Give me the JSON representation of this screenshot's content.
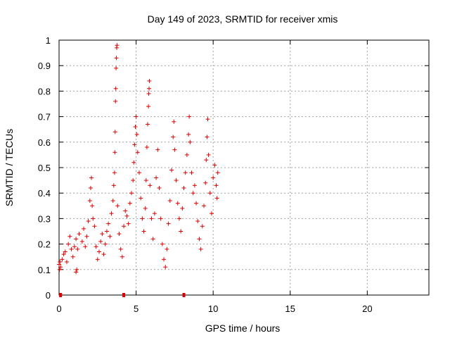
{
  "chart_data": {
    "type": "scatter",
    "title": "Day 149 of 2023, SRMTID for receiver xmis",
    "xlabel": "GPS time / hours",
    "ylabel": "SRMTID / TECUs",
    "xlim": [
      0,
      24
    ],
    "ylim": [
      0,
      1
    ],
    "xticks": [
      0,
      5,
      10,
      15,
      20
    ],
    "xtick_labels": [
      "0",
      "5",
      "10",
      "15",
      "20"
    ],
    "yticks": [
      0,
      0.1,
      0.2,
      0.3,
      0.4,
      0.5,
      0.6,
      0.7,
      0.8,
      0.9,
      1
    ],
    "ytick_labels": [
      "0",
      "0.1",
      "0.2",
      "0.3",
      "0.4",
      "0.5",
      "0.6",
      "0.7",
      "0.8",
      "0.9",
      "1"
    ],
    "grid": true,
    "marker": "+",
    "color": "#dd0000",
    "series": [
      {
        "name": "SRMTID",
        "points": [
          [
            0.0,
            0.12
          ],
          [
            0.03,
            0.1
          ],
          [
            0.06,
            0.13
          ],
          [
            0.1,
            0.11
          ],
          [
            0.2,
            0.14
          ],
          [
            0.3,
            0.16
          ],
          [
            0.4,
            0.17
          ],
          [
            0.5,
            0.13
          ],
          [
            0.6,
            0.2
          ],
          [
            0.7,
            0.23
          ],
          [
            0.8,
            0.18
          ],
          [
            0.9,
            0.15
          ],
          [
            1.0,
            0.19
          ],
          [
            1.1,
            0.22
          ],
          [
            1.2,
            0.18
          ],
          [
            1.3,
            0.24
          ],
          [
            1.1,
            0.09
          ],
          [
            1.15,
            0.1
          ],
          [
            1.5,
            0.21
          ],
          [
            1.6,
            0.26
          ],
          [
            1.7,
            0.19
          ],
          [
            1.8,
            0.23
          ],
          [
            1.9,
            0.29
          ],
          [
            2.0,
            0.37
          ],
          [
            2.05,
            0.42
          ],
          [
            2.1,
            0.46
          ],
          [
            2.15,
            0.35
          ],
          [
            2.2,
            0.3
          ],
          [
            2.3,
            0.27
          ],
          [
            2.4,
            0.19
          ],
          [
            2.5,
            0.14
          ],
          [
            2.6,
            0.17
          ],
          [
            2.7,
            0.21
          ],
          [
            2.8,
            0.24
          ],
          [
            2.9,
            0.16
          ],
          [
            3.0,
            0.2
          ],
          [
            3.1,
            0.25
          ],
          [
            3.2,
            0.28
          ],
          [
            3.3,
            0.23
          ],
          [
            3.4,
            0.32
          ],
          [
            3.5,
            0.37
          ],
          [
            3.55,
            0.43
          ],
          [
            3.6,
            0.48
          ],
          [
            3.62,
            0.56
          ],
          [
            3.64,
            0.64
          ],
          [
            3.66,
            0.76
          ],
          [
            3.68,
            0.81
          ],
          [
            3.7,
            0.89
          ],
          [
            3.72,
            0.93
          ],
          [
            3.74,
            0.97
          ],
          [
            3.76,
            0.98
          ],
          [
            3.8,
            0.35
          ],
          [
            3.9,
            0.24
          ],
          [
            4.0,
            0.18
          ],
          [
            4.1,
            0.15
          ],
          [
            4.2,
            0.27
          ],
          [
            4.3,
            0.33
          ],
          [
            4.4,
            0.31
          ],
          [
            4.5,
            0.28
          ],
          [
            4.6,
            0.36
          ],
          [
            4.7,
            0.4
          ],
          [
            4.8,
            0.45
          ],
          [
            4.85,
            0.52
          ],
          [
            4.9,
            0.59
          ],
          [
            4.95,
            0.66
          ],
          [
            5.0,
            0.7
          ],
          [
            5.05,
            0.63
          ],
          [
            5.1,
            0.56
          ],
          [
            5.2,
            0.48
          ],
          [
            5.3,
            0.38
          ],
          [
            5.4,
            0.3
          ],
          [
            5.5,
            0.25
          ],
          [
            5.6,
            0.34
          ],
          [
            5.65,
            0.45
          ],
          [
            5.7,
            0.58
          ],
          [
            5.75,
            0.67
          ],
          [
            5.8,
            0.74
          ],
          [
            5.82,
            0.79
          ],
          [
            5.84,
            0.81
          ],
          [
            5.86,
            0.84
          ],
          [
            5.9,
            0.43
          ],
          [
            6.0,
            0.3
          ],
          [
            6.1,
            0.22
          ],
          [
            6.2,
            0.32
          ],
          [
            6.3,
            0.46
          ],
          [
            6.4,
            0.57
          ],
          [
            6.5,
            0.42
          ],
          [
            6.6,
            0.3
          ],
          [
            6.7,
            0.2
          ],
          [
            6.8,
            0.14
          ],
          [
            6.9,
            0.11
          ],
          [
            7.0,
            0.18
          ],
          [
            7.1,
            0.28
          ],
          [
            7.2,
            0.37
          ],
          [
            7.3,
            0.49
          ],
          [
            7.4,
            0.62
          ],
          [
            7.45,
            0.68
          ],
          [
            7.5,
            0.57
          ],
          [
            7.6,
            0.45
          ],
          [
            7.7,
            0.36
          ],
          [
            7.8,
            0.3
          ],
          [
            7.9,
            0.25
          ],
          [
            8.0,
            0.34
          ],
          [
            8.1,
            0.42
          ],
          [
            8.2,
            0.48
          ],
          [
            8.3,
            0.55
          ],
          [
            8.4,
            0.63
          ],
          [
            8.45,
            0.7
          ],
          [
            8.5,
            0.6
          ],
          [
            8.6,
            0.48
          ],
          [
            8.7,
            0.4
          ],
          [
            8.8,
            0.43
          ],
          [
            8.9,
            0.36
          ],
          [
            9.0,
            0.29
          ],
          [
            9.1,
            0.22
          ],
          [
            9.2,
            0.18
          ],
          [
            9.3,
            0.27
          ],
          [
            9.4,
            0.35
          ],
          [
            9.5,
            0.44
          ],
          [
            9.55,
            0.53
          ],
          [
            9.6,
            0.62
          ],
          [
            9.65,
            0.69
          ],
          [
            9.7,
            0.55
          ],
          [
            9.8,
            0.4
          ],
          [
            9.9,
            0.32
          ],
          [
            10.0,
            0.46
          ],
          [
            10.1,
            0.51
          ],
          [
            10.2,
            0.43
          ],
          [
            10.25,
            0.38
          ],
          [
            10.3,
            0.48
          ]
        ]
      }
    ],
    "zero_markers_x": [
      0.1,
      4.2,
      8.1
    ]
  }
}
